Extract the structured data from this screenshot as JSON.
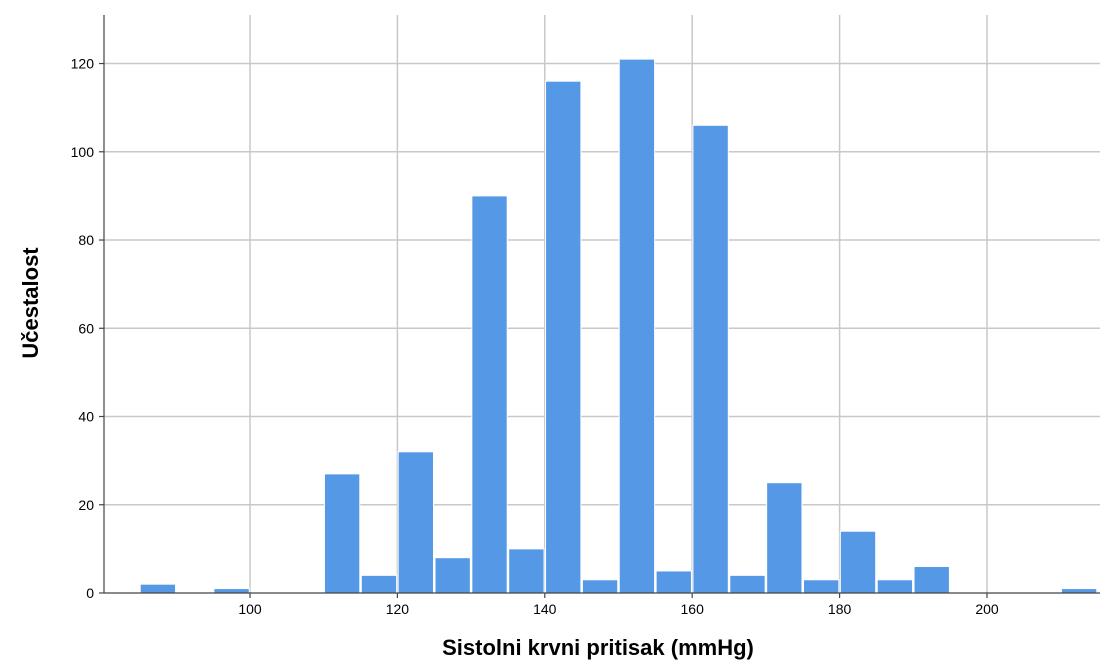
{
  "chart_data": {
    "type": "bar",
    "xlabel": "Sistolni krvni pritisak (mmHg)",
    "ylabel": "Učestalost",
    "bin_width": 5,
    "xlim": [
      80,
      215
    ],
    "ylim": [
      0,
      131
    ],
    "x_ticks": [
      100,
      120,
      140,
      160,
      180,
      200
    ],
    "y_ticks": [
      0,
      20,
      40,
      60,
      80,
      100,
      120
    ],
    "grid": true,
    "bar_color": "#5598e6",
    "bins": [
      {
        "start": 85,
        "end": 90,
        "count": 2
      },
      {
        "start": 90,
        "end": 95,
        "count": 0
      },
      {
        "start": 95,
        "end": 100,
        "count": 1
      },
      {
        "start": 100,
        "end": 105,
        "count": 0
      },
      {
        "start": 105,
        "end": 110,
        "count": 0
      },
      {
        "start": 110,
        "end": 115,
        "count": 27
      },
      {
        "start": 115,
        "end": 120,
        "count": 4
      },
      {
        "start": 120,
        "end": 125,
        "count": 32
      },
      {
        "start": 125,
        "end": 130,
        "count": 8
      },
      {
        "start": 130,
        "end": 135,
        "count": 90
      },
      {
        "start": 135,
        "end": 140,
        "count": 10
      },
      {
        "start": 140,
        "end": 145,
        "count": 116
      },
      {
        "start": 145,
        "end": 150,
        "count": 3
      },
      {
        "start": 150,
        "end": 155,
        "count": 121
      },
      {
        "start": 155,
        "end": 160,
        "count": 5
      },
      {
        "start": 160,
        "end": 165,
        "count": 106
      },
      {
        "start": 165,
        "end": 170,
        "count": 4
      },
      {
        "start": 170,
        "end": 175,
        "count": 25
      },
      {
        "start": 175,
        "end": 180,
        "count": 3
      },
      {
        "start": 180,
        "end": 185,
        "count": 14
      },
      {
        "start": 185,
        "end": 190,
        "count": 3
      },
      {
        "start": 190,
        "end": 195,
        "count": 6
      },
      {
        "start": 195,
        "end": 200,
        "count": 0
      },
      {
        "start": 200,
        "end": 205,
        "count": 0
      },
      {
        "start": 205,
        "end": 210,
        "count": 0
      },
      {
        "start": 210,
        "end": 215,
        "count": 1
      }
    ]
  }
}
